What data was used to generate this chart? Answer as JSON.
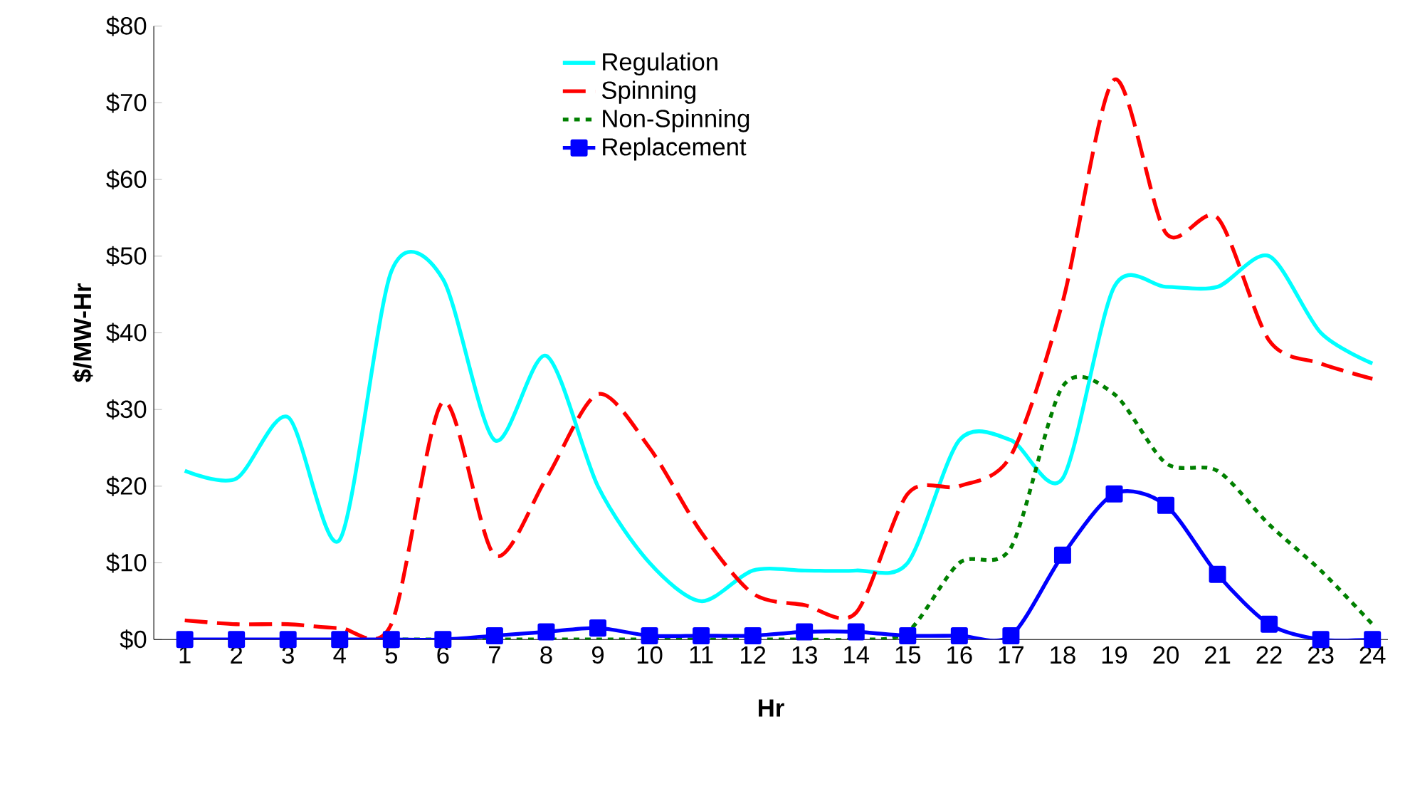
{
  "chart_data": {
    "type": "line",
    "xlabel": "Hr",
    "ylabel": "$/MW-Hr",
    "categories": [
      "1",
      "2",
      "3",
      "4",
      "5",
      "6",
      "7",
      "8",
      "9",
      "10",
      "11",
      "12",
      "13",
      "14",
      "15",
      "16",
      "17",
      "18",
      "19",
      "20",
      "21",
      "22",
      "23",
      "24"
    ],
    "ylim": [
      0,
      80
    ],
    "yticks": [
      {
        "value": 0,
        "label": "$0"
      },
      {
        "value": 10,
        "label": "$10"
      },
      {
        "value": 20,
        "label": "$20"
      },
      {
        "value": 30,
        "label": "$30"
      },
      {
        "value": 40,
        "label": "$40"
      },
      {
        "value": 50,
        "label": "$50"
      },
      {
        "value": 60,
        "label": "$60"
      },
      {
        "value": 70,
        "label": "$70"
      },
      {
        "value": 80,
        "label": "$80"
      }
    ],
    "grid": false,
    "legend": "top",
    "marker": "none",
    "line_style": "solid",
    "series": [
      {
        "name": "Regulation",
        "color": "#00ffff",
        "values": [
          22,
          21,
          29,
          13,
          48,
          47,
          26,
          37,
          20,
          10,
          5,
          9,
          9,
          9,
          10,
          26,
          26,
          21,
          46,
          46,
          46,
          50,
          40,
          36
        ]
      },
      {
        "name": "Spinning",
        "color": "#ff0000",
        "line_style": "dashed",
        "values": [
          2.5,
          2,
          2,
          1.5,
          2,
          31,
          11,
          21,
          32,
          25,
          14,
          6,
          4.5,
          3.5,
          19,
          20,
          24,
          44,
          73,
          53,
          55,
          39,
          36,
          34
        ]
      },
      {
        "name": "Non-Spinning",
        "color": "#008000",
        "line_style": "dotted",
        "values": [
          null,
          null,
          null,
          null,
          0,
          0,
          0,
          0,
          0,
          0,
          0,
          0,
          0,
          0,
          1,
          10,
          12,
          33,
          32,
          23,
          22,
          15,
          9,
          2
        ]
      },
      {
        "name": "Replacement",
        "color": "#0000ff",
        "marker": "square",
        "values": [
          0,
          0,
          0,
          0,
          0,
          0,
          0.5,
          1,
          1.5,
          0.5,
          0.5,
          0.5,
          1,
          1,
          0.5,
          0.5,
          0.5,
          11,
          19,
          17.5,
          8.5,
          2,
          0,
          0
        ]
      }
    ]
  }
}
